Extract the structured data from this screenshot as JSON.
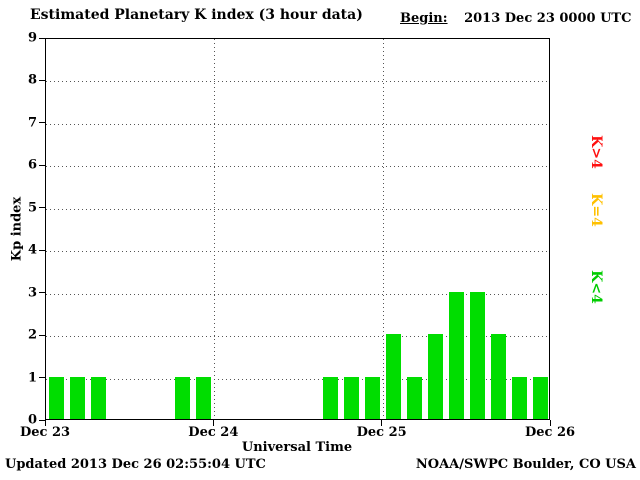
{
  "header": {
    "title": "Estimated Planetary K index (3 hour data)",
    "begin_label": "Begin:",
    "begin_value": "2013 Dec 23 0000 UTC"
  },
  "y_axis": {
    "label": "Kp index",
    "ticks": [
      "0",
      "1",
      "2",
      "3",
      "4",
      "5",
      "6",
      "7",
      "8",
      "9"
    ]
  },
  "x_axis": {
    "label": "Universal Time",
    "ticks": [
      "Dec 23",
      "Dec 24",
      "Dec 25",
      "Dec 26"
    ]
  },
  "legend": [
    {
      "label": "K>4",
      "color": "#ff1010"
    },
    {
      "label": "K=4",
      "color": "#ffc000"
    },
    {
      "label": "K<4",
      "color": "#00cc00"
    }
  ],
  "footer": {
    "updated": "Updated 2013 Dec 26 02:55:04 UTC",
    "source": "NOAA/SWPC Boulder, CO USA"
  },
  "chart_data": {
    "type": "bar",
    "title": "Estimated Planetary K index (3 hour data)",
    "xlabel": "Universal Time",
    "ylabel": "Kp index",
    "ylim": [
      0,
      9
    ],
    "grid": "dotted",
    "legend_position": "right",
    "bar_color": "#00dd00",
    "bars_per_day": 8,
    "interval_hours": 3,
    "x_day_labels": [
      "Dec 23",
      "Dec 24",
      "Dec 25",
      "Dec 26"
    ],
    "values_by_day": {
      "Dec 23": [
        1,
        1,
        1,
        0,
        0,
        0,
        1,
        1
      ],
      "Dec 24": [
        0,
        0,
        0,
        0,
        0,
        1,
        1,
        1
      ],
      "Dec 25": [
        2,
        1,
        2,
        3,
        3,
        2,
        1,
        1
      ]
    },
    "values": [
      1,
      1,
      1,
      0,
      0,
      0,
      1,
      1,
      0,
      0,
      0,
      0,
      0,
      1,
      1,
      1,
      2,
      1,
      2,
      3,
      3,
      2,
      1,
      1
    ]
  }
}
